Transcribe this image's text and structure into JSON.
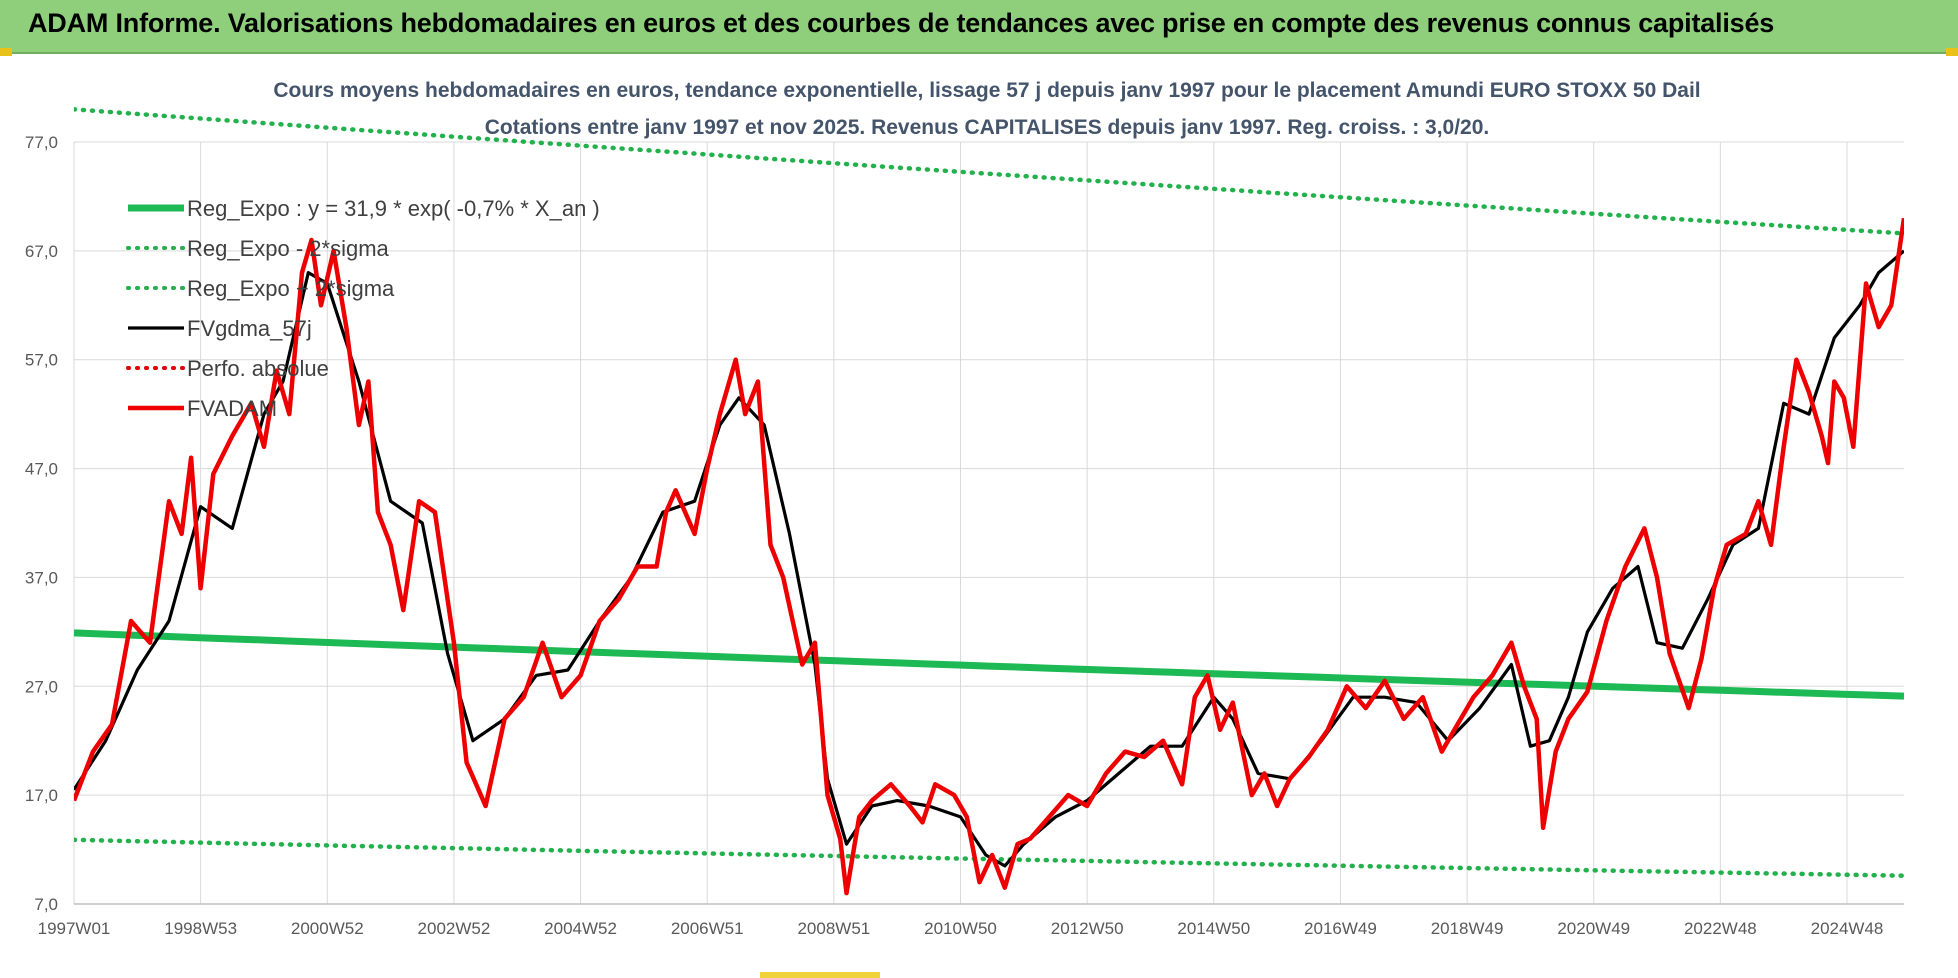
{
  "header": {
    "title": "ADAM Informe. Valorisations hebdomadaires en euros et des courbes de tendances avec prise en compte des revenus connus capitalisés"
  },
  "colors": {
    "banner": "#8fcf7b",
    "reg_expo": "#1db954",
    "sigma": "#22b14c",
    "fvgdma": "#000000",
    "perfo": "#e00000",
    "fvadam": "#ee0000",
    "grid": "#d9d9d9",
    "title_text": "#44546a"
  },
  "chart_data": {
    "type": "line",
    "title": "Cours moyens hebdomadaires en euros, tendance exponentielle, lissage 57 j depuis janv 1997 pour le placement Amundi EURO STOXX 50 Dail",
    "subtitle": "Cotations entre janv 1997 et nov 2025. Revenus CAPITALISES depuis janv 1997. Reg. croiss. : 3,0/20.",
    "xlabel": "",
    "ylabel": "",
    "ylim": [
      7,
      77
    ],
    "yticks": [
      "77,0",
      "67,0",
      "57,0",
      "47,0",
      "37,0",
      "27,0",
      "17,0",
      "7,0"
    ],
    "ytick_values": [
      77,
      67,
      57,
      47,
      37,
      27,
      17,
      7
    ],
    "xlim": [
      1997.0,
      2025.9
    ],
    "xticks": [
      "1997W01",
      "1998W53",
      "2000W52",
      "2002W52",
      "2004W52",
      "2006W51",
      "2008W51",
      "2010W50",
      "2012W50",
      "2014W50",
      "2016W49",
      "2018W49",
      "2020W49",
      "2022W48",
      "2024W48"
    ],
    "xtick_values": [
      1997.0,
      1999.0,
      2001.0,
      2003.0,
      2005.0,
      2007.0,
      2009.0,
      2011.0,
      2013.0,
      2015.0,
      2017.0,
      2019.0,
      2021.0,
      2023.0,
      2025.0
    ],
    "grid": true,
    "legend_position": "top-left",
    "series": [
      {
        "name": "Reg_Expo : y = 31,9 * exp( -0,7% *  X_an )",
        "style": "solid-thick",
        "color_key": "reg_expo",
        "x": [
          1997.0,
          2025.9
        ],
        "y": [
          31.9,
          26.1
        ]
      },
      {
        "name": "Reg_Expo - 2*sigma",
        "style": "dotted",
        "color_key": "sigma",
        "x": [
          1997.0,
          2025.9
        ],
        "y": [
          12.9,
          9.6
        ]
      },
      {
        "name": "Reg_Expo + 2*sigma",
        "style": "dotted",
        "color_key": "sigma",
        "x": [
          1997.0,
          2025.9
        ],
        "y": [
          80.0,
          68.6
        ]
      },
      {
        "name": "FVgdma_57j",
        "style": "solid",
        "color_key": "fvgdma",
        "x": [
          1997.0,
          1997.5,
          1998.0,
          1998.5,
          1999.0,
          1999.5,
          2000.0,
          2000.3,
          2000.7,
          2001.0,
          2001.5,
          2002.0,
          2002.5,
          2002.9,
          2003.3,
          2003.8,
          2004.3,
          2004.8,
          2005.3,
          2005.8,
          2006.3,
          2006.8,
          2007.2,
          2007.5,
          2007.9,
          2008.3,
          2008.7,
          2008.9,
          2009.2,
          2009.6,
          2010.0,
          2010.5,
          2011.0,
          2011.4,
          2011.7,
          2012.0,
          2012.5,
          2013.0,
          2013.5,
          2014.0,
          2014.5,
          2015.0,
          2015.3,
          2015.7,
          2016.2,
          2016.7,
          2017.2,
          2017.7,
          2018.2,
          2018.7,
          2019.2,
          2019.7,
          2020.0,
          2020.3,
          2020.6,
          2020.9,
          2021.3,
          2021.7,
          2022.0,
          2022.4,
          2022.8,
          2023.2,
          2023.6,
          2024.0,
          2024.4,
          2024.8,
          2025.2,
          2025.5,
          2025.9
        ],
        "y": [
          17.5,
          22.0,
          28.5,
          33.0,
          43.5,
          41.5,
          52.0,
          55.0,
          65.0,
          64.0,
          55.0,
          44.0,
          42.0,
          30.0,
          22.0,
          24.0,
          28.0,
          28.5,
          33.0,
          37.0,
          43.0,
          44.0,
          51.0,
          53.5,
          51.0,
          41.0,
          29.0,
          18.5,
          12.5,
          16.0,
          16.5,
          16.0,
          15.0,
          11.5,
          10.5,
          12.5,
          15.0,
          16.5,
          19.0,
          21.5,
          21.5,
          26.0,
          24.0,
          19.0,
          18.5,
          22.0,
          26.0,
          26.0,
          25.5,
          22.0,
          25.0,
          29.0,
          21.5,
          22.0,
          26.0,
          32.0,
          36.0,
          38.0,
          31.0,
          30.5,
          35.0,
          40.0,
          41.5,
          53.0,
          52.0,
          59.0,
          62.0,
          65.0,
          67.0
        ]
      },
      {
        "name": "Perfo. absolue",
        "style": "dotted",
        "color_key": "perfo",
        "x": [],
        "y": []
      },
      {
        "name": "FVADAM",
        "style": "solid-thick",
        "color_key": "fvadam",
        "x": [
          1997.0,
          1997.3,
          1997.6,
          1997.9,
          1998.2,
          1998.5,
          1998.7,
          1998.85,
          1999.0,
          1999.2,
          1999.5,
          1999.8,
          2000.0,
          2000.2,
          2000.4,
          2000.6,
          2000.75,
          2000.9,
          2001.1,
          2001.3,
          2001.5,
          2001.65,
          2001.8,
          2002.0,
          2002.2,
          2002.45,
          2002.7,
          2002.85,
          2003.0,
          2003.2,
          2003.5,
          2003.8,
          2004.1,
          2004.4,
          2004.7,
          2005.0,
          2005.3,
          2005.6,
          2005.9,
          2006.2,
          2006.35,
          2006.5,
          2006.8,
          2007.0,
          2007.2,
          2007.45,
          2007.6,
          2007.8,
          2008.0,
          2008.2,
          2008.5,
          2008.7,
          2008.9,
          2009.1,
          2009.2,
          2009.4,
          2009.6,
          2009.9,
          2010.2,
          2010.4,
          2010.6,
          2010.9,
          2011.1,
          2011.3,
          2011.5,
          2011.7,
          2011.9,
          2012.1,
          2012.4,
          2012.7,
          2013.0,
          2013.3,
          2013.6,
          2013.9,
          2014.2,
          2014.5,
          2014.7,
          2014.9,
          2015.1,
          2015.3,
          2015.6,
          2015.8,
          2016.0,
          2016.2,
          2016.5,
          2016.8,
          2017.1,
          2017.4,
          2017.7,
          2018.0,
          2018.3,
          2018.6,
          2018.8,
          2019.1,
          2019.4,
          2019.7,
          2019.9,
          2020.1,
          2020.2,
          2020.4,
          2020.6,
          2020.9,
          2021.2,
          2021.5,
          2021.8,
          2022.0,
          2022.2,
          2022.5,
          2022.7,
          2022.9,
          2023.1,
          2023.4,
          2023.6,
          2023.8,
          2024.0,
          2024.2,
          2024.4,
          2024.6,
          2024.7,
          2024.8,
          2024.95,
          2025.1,
          2025.3,
          2025.5,
          2025.7,
          2025.9
        ],
        "y": [
          16.5,
          21.0,
          23.5,
          33.0,
          31.0,
          44.0,
          41.0,
          48.0,
          36.0,
          46.5,
          50.0,
          53.0,
          49.0,
          56.0,
          52.0,
          65.0,
          68.0,
          62.0,
          67.0,
          60.0,
          51.0,
          55.0,
          43.0,
          40.0,
          34.0,
          44.0,
          43.0,
          37.0,
          31.0,
          20.0,
          16.0,
          24.0,
          26.0,
          31.0,
          26.0,
          28.0,
          33.0,
          35.0,
          38.0,
          38.0,
          43.0,
          45.0,
          41.0,
          47.0,
          52.0,
          57.0,
          52.0,
          55.0,
          40.0,
          37.0,
          29.0,
          31.0,
          17.0,
          13.0,
          8.0,
          15.0,
          16.5,
          18.0,
          16.0,
          14.5,
          18.0,
          17.0,
          15.0,
          9.0,
          11.5,
          8.5,
          12.5,
          13.0,
          15.0,
          17.0,
          16.0,
          19.0,
          21.0,
          20.5,
          22.0,
          18.0,
          26.0,
          28.0,
          23.0,
          25.5,
          17.0,
          19.0,
          16.0,
          18.5,
          20.5,
          23.0,
          27.0,
          25.0,
          27.5,
          24.0,
          26.0,
          21.0,
          23.0,
          26.0,
          28.0,
          31.0,
          27.0,
          24.0,
          14.0,
          21.0,
          24.0,
          26.5,
          33.0,
          38.0,
          41.5,
          37.0,
          30.0,
          25.0,
          29.5,
          36.0,
          40.0,
          41.0,
          44.0,
          40.0,
          49.0,
          57.0,
          54.0,
          50.0,
          47.5,
          55.0,
          53.5,
          49.0,
          64.0,
          60.0,
          62.0,
          70.0
        ]
      }
    ]
  }
}
